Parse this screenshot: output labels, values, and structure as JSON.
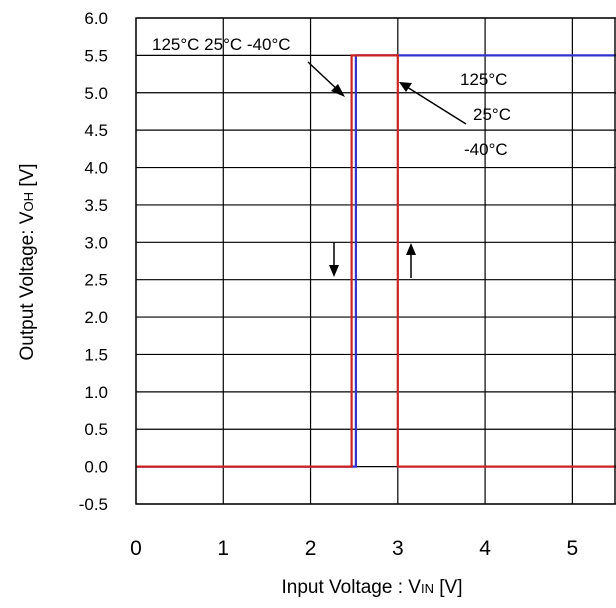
{
  "chart_data": {
    "type": "line",
    "title": "",
    "xlabel": {
      "prefix": "Input Voltage : V",
      "sub": "IN",
      "suffix": " [V]"
    },
    "ylabel": {
      "prefix": "Output Voltage: V",
      "sub": "OH",
      "suffix": " [V]"
    },
    "xlim": [
      0,
      5.5
    ],
    "ylim": [
      -0.5,
      6.0
    ],
    "x_ticks": [
      "0",
      "1",
      "2",
      "3",
      "4",
      "5"
    ],
    "y_ticks": [
      "-0.5",
      "0.0",
      "0.5",
      "1.0",
      "1.5",
      "2.0",
      "2.5",
      "3.0",
      "3.5",
      "4.0",
      "4.5",
      "5.0",
      "5.5",
      "6.0"
    ],
    "grid": true,
    "series": [
      {
        "color": "#3333cc",
        "x": [
          0,
          2.52,
          2.52,
          5.5
        ],
        "y": [
          0,
          0,
          5.5,
          5.5
        ]
      },
      {
        "color": "#cc2222",
        "x": [
          0,
          2.47,
          2.47,
          3.0,
          3.0,
          5.5
        ],
        "y": [
          0,
          0,
          5.5,
          5.5,
          0,
          0
        ]
      }
    ],
    "annotations": {
      "falling_label": "125°C 25°C -40°C",
      "rising_labels": [
        "125°C",
        "25°C",
        "-40°C"
      ]
    }
  }
}
